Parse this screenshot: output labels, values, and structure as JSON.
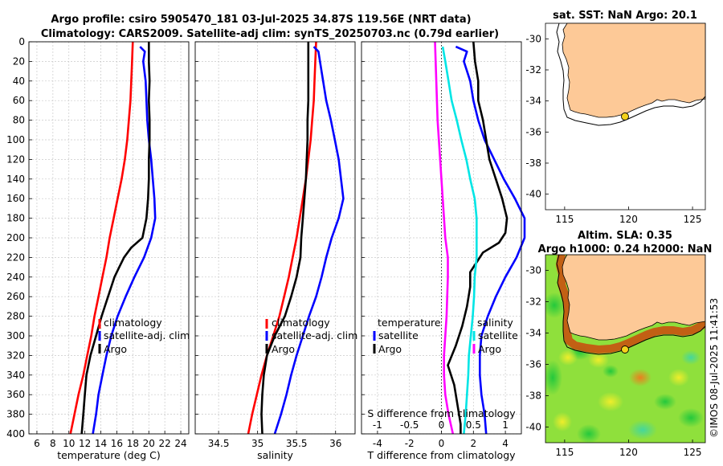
{
  "header": {
    "line1": "Argo profile: csiro 5905470_181 03-Jul-2025 34.87S 119.56E (NRT data)",
    "line2": "Climatology: CARS2009. Satellite-adj clim: synTS_20250703.nc (0.79d earlier)"
  },
  "colors": {
    "climatology": "#ff0000",
    "satellite": "#0000ff",
    "argo": "#000000",
    "salinity_diff": "#00e5e5",
    "temperature_diff": "#ff00ff",
    "land": "#fdc997"
  },
  "chart_data": [
    {
      "type": "line",
      "title": "",
      "xlabel": "temperature (deg C)",
      "ylabel": "",
      "xlim": [
        5,
        25
      ],
      "ylim": [
        400,
        0
      ],
      "xticks": [
        "6",
        "8",
        "10",
        "12",
        "14",
        "16",
        "18",
        "20",
        "22",
        "24"
      ],
      "yticks": [
        "0",
        "20",
        "40",
        "60",
        "80",
        "100",
        "120",
        "140",
        "160",
        "180",
        "200",
        "220",
        "240",
        "260",
        "280",
        "300",
        "320",
        "340",
        "360",
        "380",
        "400"
      ],
      "legend": [
        "climatology",
        "satellite-adj. clim",
        "Argo"
      ],
      "legend_placement": "lower-right",
      "series": [
        {
          "name": "climatology",
          "color": "#ff0000",
          "depth": [
            0,
            20,
            40,
            60,
            80,
            100,
            120,
            140,
            160,
            180,
            200,
            220,
            240,
            260,
            280,
            300,
            320,
            340,
            360,
            380,
            400
          ],
          "values": [
            18.0,
            17.9,
            17.8,
            17.7,
            17.5,
            17.3,
            17.0,
            16.6,
            16.1,
            15.6,
            15.1,
            14.7,
            14.2,
            13.7,
            13.2,
            12.8,
            12.3,
            11.8,
            11.2,
            10.7,
            10.2
          ]
        },
        {
          "name": "satellite-adj. clim",
          "color": "#0000ff",
          "depth": [
            5,
            10,
            20,
            40,
            60,
            80,
            100,
            120,
            140,
            160,
            180,
            200,
            220,
            240,
            260,
            280,
            300,
            320,
            340,
            360,
            380,
            400
          ],
          "values": [
            18.9,
            19.5,
            19.3,
            19.6,
            19.7,
            19.8,
            20.0,
            20.3,
            20.5,
            20.7,
            20.8,
            20.3,
            19.4,
            18.2,
            17.1,
            16.1,
            15.3,
            14.7,
            14.2,
            13.7,
            13.4,
            13.0
          ]
        },
        {
          "name": "Argo",
          "color": "#000000",
          "depth": [
            0,
            20,
            40,
            60,
            80,
            100,
            120,
            140,
            160,
            180,
            200,
            210,
            220,
            230,
            240,
            250,
            260,
            280,
            300,
            320,
            340,
            360,
            380,
            400
          ],
          "values": [
            20.0,
            20.0,
            20.1,
            20.0,
            20.1,
            20.1,
            20.0,
            20.0,
            19.9,
            19.7,
            19.2,
            17.8,
            16.9,
            16.3,
            15.7,
            15.3,
            14.9,
            14.1,
            13.4,
            12.7,
            12.2,
            12.0,
            11.8,
            11.6
          ]
        }
      ]
    },
    {
      "type": "line",
      "title": "",
      "xlabel": "salinity",
      "ylabel": "",
      "xlim": [
        34.2,
        36.25
      ],
      "ylim": [
        400,
        0
      ],
      "xticks": [
        "34.5",
        "35",
        "35.5",
        "36"
      ],
      "legend": [
        "climatology",
        "satellite-adj. clim",
        "Argo"
      ],
      "legend_placement": "lower-right",
      "series": [
        {
          "name": "climatology",
          "color": "#ff0000",
          "depth": [
            0,
            20,
            40,
            60,
            80,
            100,
            120,
            140,
            160,
            180,
            200,
            220,
            240,
            260,
            280,
            300,
            320,
            340,
            360,
            380,
            400
          ],
          "values": [
            35.75,
            35.74,
            35.73,
            35.72,
            35.7,
            35.68,
            35.65,
            35.62,
            35.58,
            35.54,
            35.5,
            35.45,
            35.4,
            35.34,
            35.28,
            35.2,
            35.12,
            35.05,
            34.99,
            34.93,
            34.88
          ]
        },
        {
          "name": "satellite-adj. clim",
          "color": "#0000ff",
          "depth": [
            5,
            10,
            20,
            40,
            60,
            80,
            100,
            120,
            140,
            160,
            180,
            200,
            220,
            240,
            260,
            280,
            300,
            320,
            340,
            360,
            380,
            400
          ],
          "values": [
            35.72,
            35.78,
            35.8,
            35.84,
            35.88,
            35.94,
            35.99,
            36.04,
            36.07,
            36.1,
            36.04,
            35.95,
            35.88,
            35.82,
            35.75,
            35.66,
            35.58,
            35.5,
            35.43,
            35.37,
            35.3,
            35.22
          ]
        },
        {
          "name": "Argo",
          "color": "#000000",
          "depth": [
            0,
            20,
            40,
            60,
            80,
            100,
            120,
            140,
            160,
            180,
            200,
            220,
            240,
            260,
            280,
            300,
            320,
            340,
            360,
            380,
            400
          ],
          "values": [
            35.65,
            35.65,
            35.65,
            35.65,
            35.64,
            35.64,
            35.63,
            35.62,
            35.6,
            35.58,
            35.56,
            35.55,
            35.5,
            35.43,
            35.35,
            35.22,
            35.12,
            35.08,
            35.06,
            35.05,
            35.06
          ]
        }
      ]
    },
    {
      "type": "line",
      "title": "",
      "xlabel": "T difference from climatology",
      "xlabel2": "S difference from climatology",
      "ylabel": "",
      "xlim": [
        -5,
        5
      ],
      "xlim_top": [
        -1.25,
        1.25
      ],
      "ylim": [
        400,
        0
      ],
      "xticks": [
        "-4",
        "-2",
        "0",
        "2",
        "4"
      ],
      "xticks_top": [
        "-1",
        "-0.5",
        "0",
        "0.5",
        "1"
      ],
      "legend_left": {
        "title": "temperature",
        "entries": [
          "satellite",
          "Argo"
        ]
      },
      "legend_right": {
        "title": "salinity",
        "entries": [
          "satellite",
          "Argo"
        ]
      },
      "legend_placement": "lower",
      "series": [
        {
          "name": "temperature satellite",
          "color": "#0000ff",
          "depth": [
            5,
            10,
            20,
            40,
            60,
            80,
            100,
            120,
            140,
            160,
            180,
            200,
            220,
            240,
            260,
            280,
            300,
            320,
            340,
            360,
            380,
            400
          ],
          "values": [
            0.9,
            1.6,
            1.4,
            1.8,
            2.0,
            2.3,
            2.7,
            3.3,
            3.9,
            4.6,
            5.2,
            5.2,
            4.7,
            4.0,
            3.4,
            2.9,
            2.5,
            2.4,
            2.4,
            2.5,
            2.7,
            2.8
          ]
        },
        {
          "name": "temperature Argo",
          "color": "#000000",
          "depth": [
            0,
            20,
            40,
            60,
            80,
            100,
            120,
            140,
            160,
            180,
            195,
            205,
            215,
            225,
            235,
            250,
            270,
            290,
            310,
            330,
            350,
            370,
            390,
            400
          ],
          "values": [
            2.0,
            2.1,
            2.3,
            2.3,
            2.6,
            2.8,
            3.0,
            3.4,
            3.8,
            4.1,
            4.0,
            3.6,
            2.6,
            2.2,
            1.8,
            1.8,
            1.6,
            1.3,
            0.9,
            0.4,
            0.8,
            1.0,
            1.2,
            1.2
          ]
        },
        {
          "name": "salinity satellite",
          "color": "#00e5e5",
          "depth": [
            5,
            20,
            40,
            60,
            80,
            100,
            120,
            140,
            160,
            180,
            200,
            220,
            240,
            260,
            280,
            300,
            320,
            340,
            360,
            380,
            400
          ],
          "values": [
            0.02,
            0.06,
            0.11,
            0.16,
            0.24,
            0.31,
            0.39,
            0.45,
            0.52,
            0.55,
            0.55,
            0.55,
            0.52,
            0.51,
            0.49,
            0.46,
            0.43,
            0.42,
            0.4,
            0.38,
            0.35
          ]
        },
        {
          "name": "salinity Argo",
          "color": "#ff00ff",
          "depth": [
            0,
            20,
            40,
            60,
            80,
            100,
            120,
            140,
            160,
            180,
            200,
            220,
            240,
            260,
            280,
            300,
            320,
            340,
            360,
            380,
            400
          ],
          "values": [
            -0.1,
            -0.09,
            -0.08,
            -0.07,
            -0.06,
            -0.04,
            -0.02,
            0.0,
            0.02,
            0.04,
            0.06,
            0.1,
            0.1,
            0.09,
            0.08,
            0.06,
            0.04,
            0.04,
            0.06,
            0.11,
            0.18
          ]
        }
      ]
    },
    {
      "type": "map",
      "title": "sat. SST: NaN Argo: 20.1",
      "xlim": [
        113.5,
        126
      ],
      "ylim": [
        -41,
        -29
      ],
      "xticks": [
        "115",
        "120",
        "125"
      ],
      "yticks": [
        "-30",
        "-32",
        "-34",
        "-36",
        "-38",
        "-40"
      ],
      "marker": {
        "lon": 119.56,
        "lat": -34.87
      }
    },
    {
      "type": "map",
      "title": "Altim. SLA: 0.35",
      "title2": "Argo h1000: 0.24 h2000: NaN",
      "xlim": [
        113.5,
        126
      ],
      "ylim": [
        -41,
        -29
      ],
      "xticks": [
        "115",
        "120",
        "125"
      ],
      "yticks": [
        "-30",
        "-32",
        "-34",
        "-36",
        "-38",
        "-40"
      ],
      "marker": {
        "lon": 119.56,
        "lat": -34.87
      }
    }
  ],
  "watermark": "©IMOS 08-Jul-2025 11:41:53"
}
